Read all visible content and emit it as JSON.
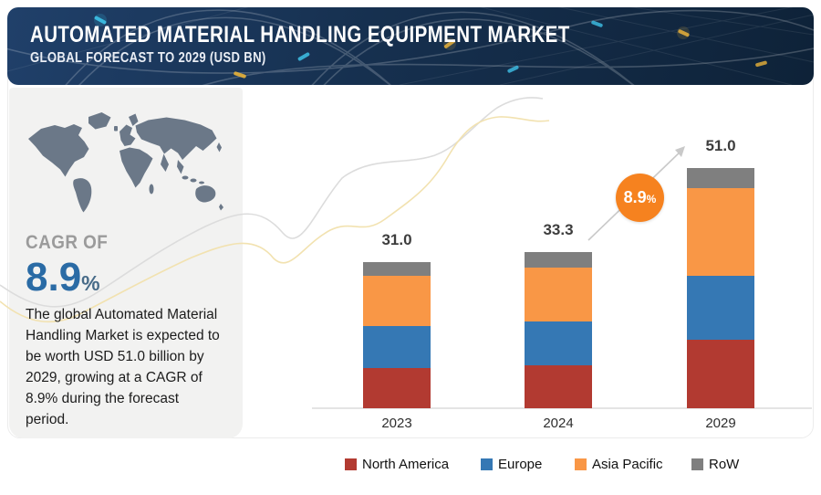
{
  "banner": {
    "title": "AUTOMATED MATERIAL HANDLING EQUIPMENT MARKET",
    "subtitle": "GLOBAL FORECAST TO 2029 (USD BN)"
  },
  "sidebar": {
    "cagr_label": "CAGR OF",
    "cagr_value": "8.9",
    "cagr_percent": "%",
    "description": "The global Automated Material Handling  Market is expected to be worth USD 51.0 billion by 2029, growing at a CAGR of 8.9% during the forecast period."
  },
  "growth_badge": {
    "value": "8.9",
    "suffix": "%"
  },
  "chart_data": {
    "type": "bar",
    "subtype": "stacked",
    "title": "Automated Material Handling Equipment Market, USD BN",
    "categories": [
      "2023",
      "2024",
      "2029"
    ],
    "totals": [
      "31.0",
      "33.3",
      "51.0"
    ],
    "series": [
      {
        "name": "North America",
        "color": "#b23a31",
        "values": [
          8.5,
          9.1,
          14.6
        ]
      },
      {
        "name": "Europe",
        "color": "#3578b4",
        "values": [
          8.9,
          9.3,
          13.6
        ]
      },
      {
        "name": "Asia Pacific",
        "color": "#f99746",
        "values": [
          10.7,
          11.5,
          18.5
        ]
      },
      {
        "name": "RoW",
        "color": "#7f7f7f",
        "values": [
          2.9,
          3.4,
          4.3
        ]
      }
    ],
    "unit": "USD BN",
    "grid": false,
    "legend_position": "bottom",
    "cagr_annotation": "8.9%"
  },
  "colors": {
    "banner_bg": "#16304f",
    "panel_bg": "#f2f2f1",
    "map": "#6b7888",
    "cagr_blue": "#2a6ba5",
    "badge_orange": "#f6821f",
    "axis": "#e4e4e4"
  },
  "icons": {
    "world_map": "world-map-silhouette",
    "growth_arrow": "up-right-arrow"
  }
}
